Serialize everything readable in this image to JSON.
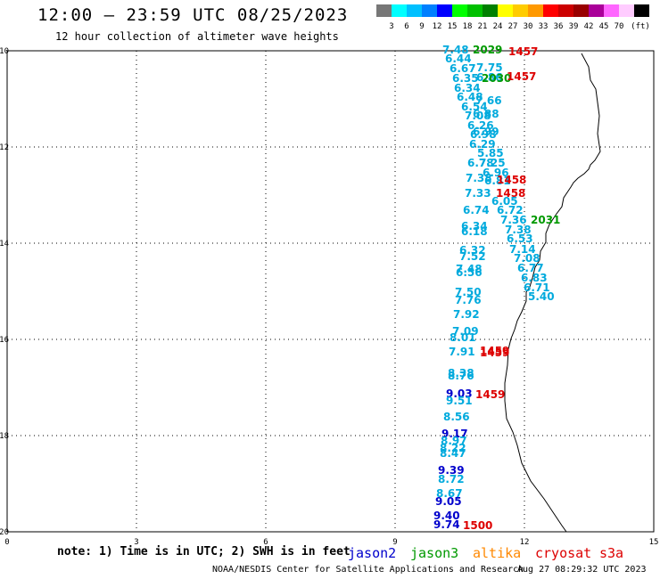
{
  "header": {
    "title": "12:00 – 23:59 UTC 08/25/2023",
    "subtitle": "12 hour collection of altimeter wave heights"
  },
  "colorbar": {
    "unit_label": "(ft)",
    "ticks": [
      "3",
      "6",
      "9",
      "12",
      "15",
      "18",
      "21",
      "24",
      "27",
      "30",
      "33",
      "36",
      "39",
      "42",
      "45",
      "70"
    ],
    "colors": [
      "#777777",
      "#00ffff",
      "#00c0ff",
      "#0080ff",
      "#0000ff",
      "#00ff00",
      "#00c000",
      "#008000",
      "#ffff00",
      "#ffcc00",
      "#ff9900",
      "#ff0000",
      "#cc0000",
      "#990000",
      "#aa0099",
      "#ff66ff",
      "#ffccff",
      "#000000"
    ]
  },
  "axes": {
    "x_ticks": [
      "0",
      "3",
      "6",
      "9",
      "12",
      "15"
    ],
    "y_ticks": [
      "-10",
      "-12",
      "-14",
      "-16",
      "-18",
      "-20"
    ]
  },
  "legend": {
    "note": "note: 1) Time is in UTC; 2) SWH is in feet",
    "satellites": [
      {
        "name": "jason2",
        "color": "#0000cc"
      },
      {
        "name": "jason3",
        "color": "#009900"
      },
      {
        "name": "altika",
        "color": "#ff8800"
      },
      {
        "name": "cryosat",
        "color": "#dd0000"
      },
      {
        "name": "s3a",
        "color": "#dd0000"
      }
    ]
  },
  "footer": {
    "credit": "NOAA/NESDIS Center for Satellite Applications and Research",
    "timestamp": "Aug 27 08:29:32 UTC 2023"
  },
  "observations": [
    {
      "t": "7.48",
      "c": "#00aadd"
    },
    {
      "t": "6.44",
      "c": "#00aadd"
    },
    {
      "t": "6.67",
      "c": "#00aadd"
    },
    {
      "t": "6.35",
      "c": "#00aadd"
    },
    {
      "t": "6.34",
      "c": "#00aadd"
    },
    {
      "t": "6.48",
      "c": "#00aadd"
    },
    {
      "t": "6.54",
      "c": "#00aadd"
    },
    {
      "t": "7.08",
      "c": "#00aadd"
    },
    {
      "t": "6.26",
      "c": "#00aadd"
    },
    {
      "t": "6.98",
      "c": "#00aadd"
    },
    {
      "t": "6.29",
      "c": "#00aadd"
    },
    {
      "t": "5.85",
      "c": "#00aadd"
    },
    {
      "t": "6.78",
      "c": "#00aadd"
    },
    {
      "t": "7.38",
      "c": "#00aadd"
    },
    {
      "t": "7.33",
      "c": "#00aadd"
    },
    {
      "t": "6.74",
      "c": "#00aadd"
    },
    {
      "t": "6.34",
      "c": "#00aadd"
    },
    {
      "t": "6.18",
      "c": "#00aadd"
    },
    {
      "t": "6.32",
      "c": "#00aadd"
    },
    {
      "t": "7.52",
      "c": "#00aadd"
    },
    {
      "t": "7.48",
      "c": "#00aadd"
    },
    {
      "t": "6.56",
      "c": "#00aadd"
    },
    {
      "t": "7.50",
      "c": "#00aadd"
    },
    {
      "t": "7.76",
      "c": "#00aadd"
    },
    {
      "t": "7.92",
      "c": "#00aadd"
    },
    {
      "t": "7.09",
      "c": "#00aadd"
    },
    {
      "t": "8.01",
      "c": "#00aadd"
    },
    {
      "t": "7.91",
      "c": "#00aadd"
    },
    {
      "t": "8.38",
      "c": "#00aadd"
    },
    {
      "t": "8.76",
      "c": "#00aadd"
    },
    {
      "t": "9.03",
      "c": "#0000cc"
    },
    {
      "t": "9.51",
      "c": "#00aadd"
    },
    {
      "t": "8.56",
      "c": "#00aadd"
    },
    {
      "t": "9.17",
      "c": "#0000cc"
    },
    {
      "t": "8.97",
      "c": "#00aadd"
    },
    {
      "t": "8.22",
      "c": "#00aadd"
    },
    {
      "t": "8.47",
      "c": "#00aadd"
    },
    {
      "t": "9.39",
      "c": "#0000cc"
    },
    {
      "t": "8.72",
      "c": "#00aadd"
    },
    {
      "t": "8.67",
      "c": "#00aadd"
    },
    {
      "t": "9.05",
      "c": "#0000cc"
    },
    {
      "t": "9.40",
      "c": "#0000cc"
    },
    {
      "t": "9.74",
      "c": "#0000cc"
    },
    {
      "t": "7.75",
      "c": "#00aadd"
    },
    {
      "t": "6.86",
      "c": "#00aadd"
    },
    {
      "t": "7.66",
      "c": "#00aadd"
    },
    {
      "t": "6.88",
      "c": "#00aadd"
    },
    {
      "t": "6.99",
      "c": "#00aadd"
    },
    {
      "t": "7.25",
      "c": "#00aadd"
    },
    {
      "t": "6.96",
      "c": "#00aadd"
    },
    {
      "t": "6.81",
      "c": "#00aadd"
    },
    {
      "t": "6.05",
      "c": "#00aadd"
    },
    {
      "t": "6.72",
      "c": "#00aadd"
    },
    {
      "t": "7.36",
      "c": "#00aadd"
    },
    {
      "t": "7.38",
      "c": "#00aadd"
    },
    {
      "t": "6.53",
      "c": "#00aadd"
    },
    {
      "t": "7.14",
      "c": "#00aadd"
    },
    {
      "t": "7.08",
      "c": "#00aadd"
    },
    {
      "t": "6.77",
      "c": "#00aadd"
    },
    {
      "t": "6.83",
      "c": "#00aadd"
    },
    {
      "t": "6.71",
      "c": "#00aadd"
    },
    {
      "t": "5.40",
      "c": "#00aadd"
    },
    {
      "t": "2029",
      "c": "#009900"
    },
    {
      "t": "2030",
      "c": "#009900"
    },
    {
      "t": "2031",
      "c": "#009900"
    },
    {
      "t": "1457",
      "c": "#dd0000"
    },
    {
      "t": "1457",
      "c": "#dd0000"
    },
    {
      "t": "1458",
      "c": "#dd0000"
    },
    {
      "t": "1458",
      "c": "#dd0000"
    },
    {
      "t": "1459",
      "c": "#dd0000"
    },
    {
      "t": "1459",
      "c": "#dd0000"
    },
    {
      "t": "1459",
      "c": "#dd0000"
    },
    {
      "t": "1500",
      "c": "#dd0000"
    }
  ]
}
